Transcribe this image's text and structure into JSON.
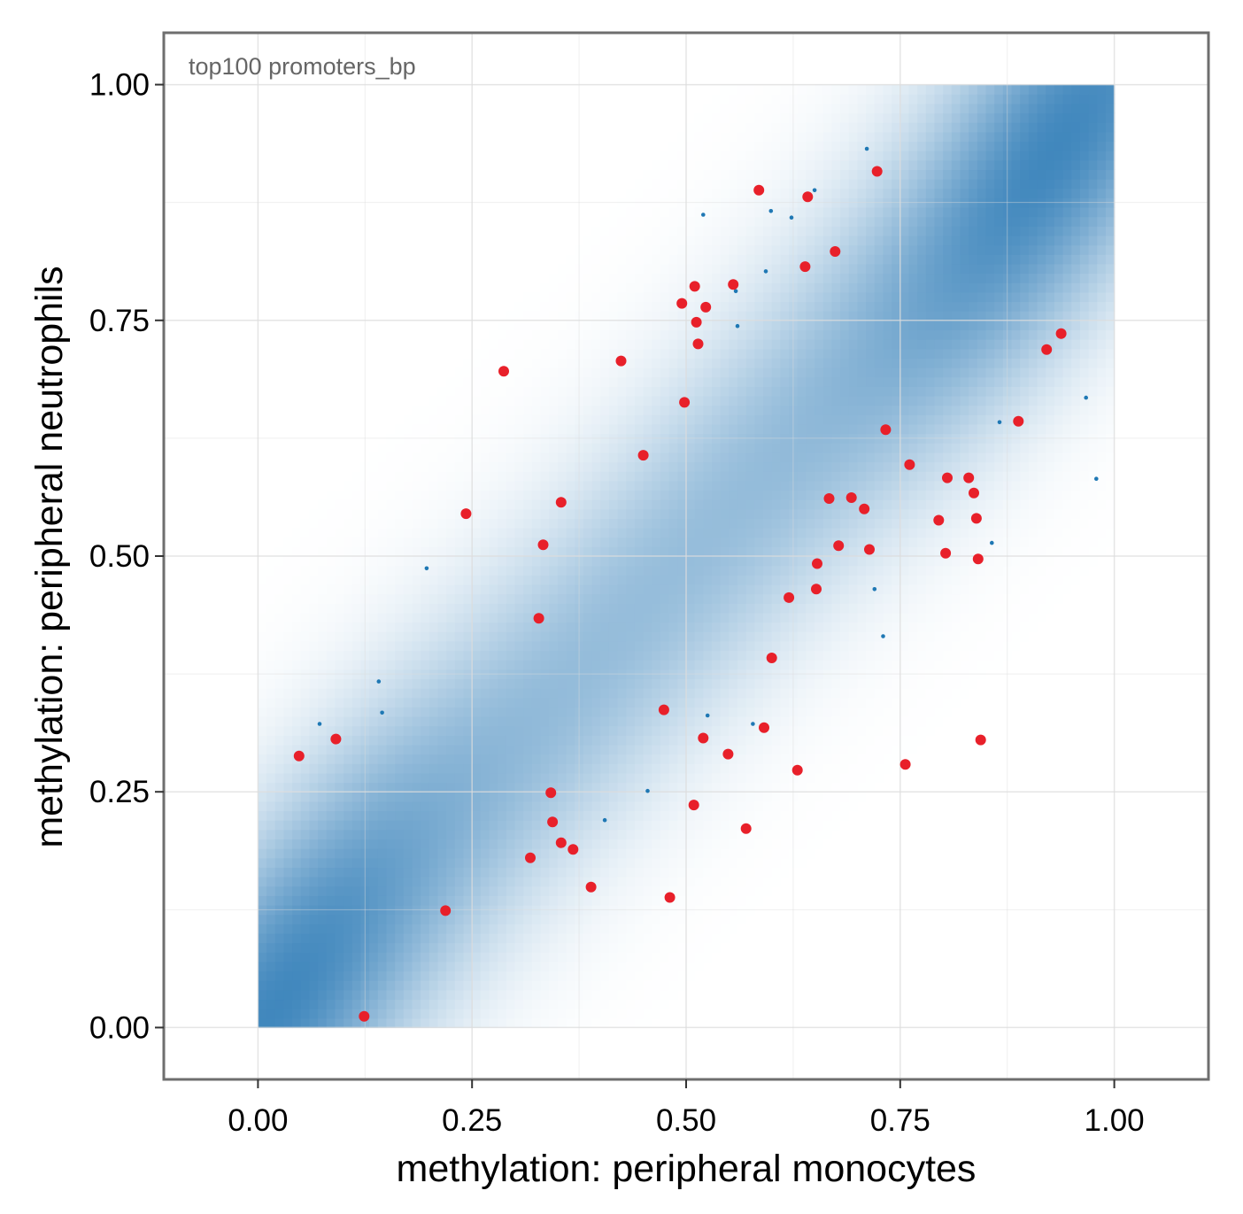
{
  "chart_data": {
    "type": "scatter",
    "title": "",
    "panel_label": "top100 promoters_bp",
    "xlabel": "methylation: peripheral monocytes",
    "ylabel": "methylation: peripheral neutrophils",
    "xlim": [
      -0.11,
      1.11
    ],
    "ylim": [
      -0.055,
      1.055
    ],
    "x_ticks": [
      0,
      0.25,
      0.5,
      0.75,
      1
    ],
    "x_tick_labels": [
      "0.00",
      "0.25",
      "0.50",
      "0.75",
      "1.00"
    ],
    "y_ticks": [
      0,
      0.25,
      0.5,
      0.75,
      1
    ],
    "y_tick_labels": [
      "0.00",
      "0.25",
      "0.50",
      "0.75",
      "1.00"
    ],
    "grid": true,
    "colors": {
      "density_low": "#ffffff",
      "density_high": "#2777b4",
      "highlight": "#e8202a",
      "background_point": "#1f78b4",
      "panel_border": "#6e6e6e",
      "grid": "#dcdcdc",
      "panel_label": "#666666"
    },
    "density_background": {
      "description_of_layer": "2D density heatmap of all promoters, peaks along diagonal",
      "range": [
        0,
        1
      ]
    },
    "series": [
      {
        "name": "",
        "role": "highlighted",
        "color": "#e8202a",
        "points": [
          [
            0.048,
            0.288
          ],
          [
            0.091,
            0.306
          ],
          [
            0.124,
            0.012
          ],
          [
            0.219,
            0.124
          ],
          [
            0.243,
            0.545
          ],
          [
            0.287,
            0.696
          ],
          [
            0.318,
            0.18
          ],
          [
            0.328,
            0.434
          ],
          [
            0.333,
            0.512
          ],
          [
            0.342,
            0.249
          ],
          [
            0.344,
            0.218
          ],
          [
            0.354,
            0.196
          ],
          [
            0.354,
            0.557
          ],
          [
            0.368,
            0.189
          ],
          [
            0.389,
            0.149
          ],
          [
            0.424,
            0.707
          ],
          [
            0.45,
            0.607
          ],
          [
            0.474,
            0.337
          ],
          [
            0.481,
            0.138
          ],
          [
            0.495,
            0.768
          ],
          [
            0.498,
            0.663
          ],
          [
            0.509,
            0.236
          ],
          [
            0.51,
            0.786
          ],
          [
            0.512,
            0.748
          ],
          [
            0.514,
            0.725
          ],
          [
            0.52,
            0.307
          ],
          [
            0.523,
            0.764
          ],
          [
            0.549,
            0.29
          ],
          [
            0.555,
            0.788
          ],
          [
            0.57,
            0.211
          ],
          [
            0.585,
            0.888
          ],
          [
            0.591,
            0.318
          ],
          [
            0.6,
            0.392
          ],
          [
            0.62,
            0.456
          ],
          [
            0.63,
            0.273
          ],
          [
            0.639,
            0.807
          ],
          [
            0.642,
            0.881
          ],
          [
            0.652,
            0.465
          ],
          [
            0.653,
            0.492
          ],
          [
            0.667,
            0.561
          ],
          [
            0.674,
            0.823
          ],
          [
            0.678,
            0.511
          ],
          [
            0.693,
            0.562
          ],
          [
            0.708,
            0.55
          ],
          [
            0.714,
            0.507
          ],
          [
            0.723,
            0.908
          ],
          [
            0.733,
            0.634
          ],
          [
            0.756,
            0.279
          ],
          [
            0.761,
            0.597
          ],
          [
            0.795,
            0.538
          ],
          [
            0.803,
            0.503
          ],
          [
            0.805,
            0.583
          ],
          [
            0.83,
            0.583
          ],
          [
            0.836,
            0.567
          ],
          [
            0.839,
            0.54
          ],
          [
            0.841,
            0.497
          ],
          [
            0.844,
            0.305
          ],
          [
            0.888,
            0.643
          ],
          [
            0.921,
            0.719
          ],
          [
            0.938,
            0.736
          ]
        ]
      },
      {
        "name": "",
        "role": "background",
        "color": "#1f78b4",
        "points": [
          [
            0.072,
            0.322
          ],
          [
            0.141,
            0.367
          ],
          [
            0.145,
            0.334
          ],
          [
            0.197,
            0.487
          ],
          [
            0.405,
            0.22
          ],
          [
            0.455,
            0.251
          ],
          [
            0.52,
            0.862
          ],
          [
            0.525,
            0.331
          ],
          [
            0.558,
            0.781
          ],
          [
            0.56,
            0.744
          ],
          [
            0.578,
            0.322
          ],
          [
            0.593,
            0.802
          ],
          [
            0.599,
            0.866
          ],
          [
            0.623,
            0.859
          ],
          [
            0.65,
            0.888
          ],
          [
            0.711,
            0.932
          ],
          [
            0.72,
            0.465
          ],
          [
            0.73,
            0.415
          ],
          [
            0.857,
            0.514
          ],
          [
            0.866,
            0.642
          ],
          [
            0.967,
            0.668
          ],
          [
            0.979,
            0.582
          ]
        ]
      }
    ]
  }
}
